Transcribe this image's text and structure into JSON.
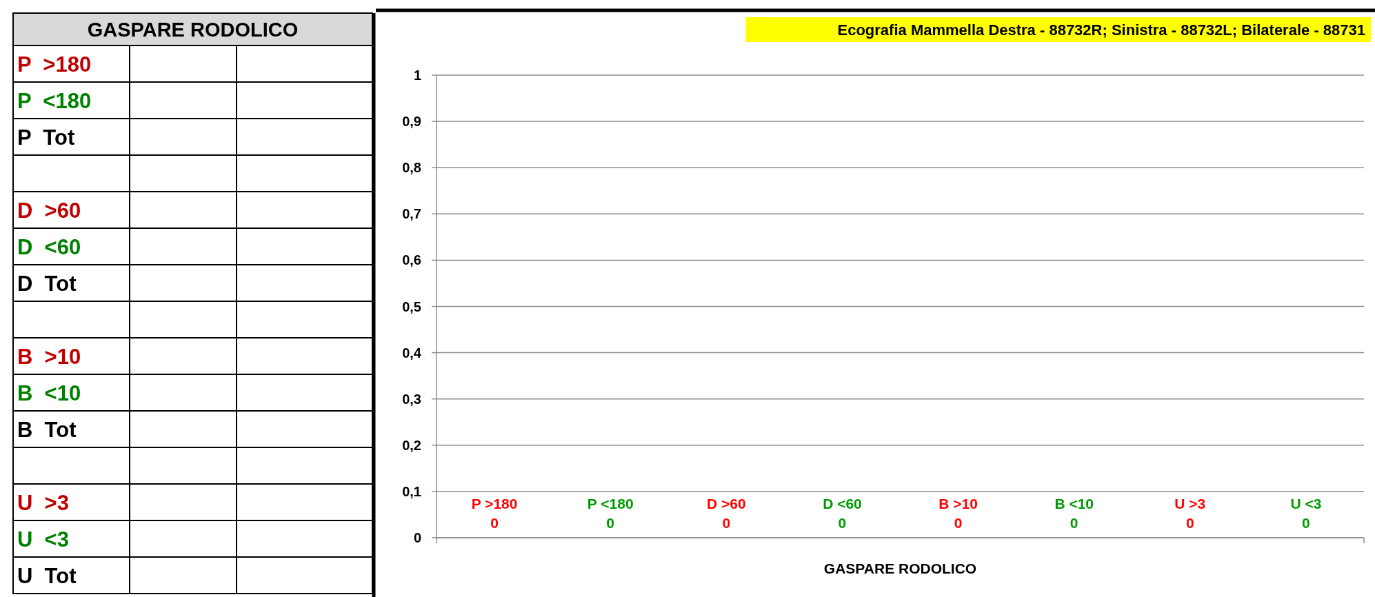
{
  "chart_data": [
    {
      "type": "other",
      "title": "GASPARE RODOLICO",
      "categories": [
        "P  >180",
        "P  <180",
        "P  Tot",
        null,
        "D  >60",
        "D  <60",
        "D  Tot",
        null,
        "B  >10",
        "B  <10",
        "B  Tot",
        null,
        "U  >3",
        "U  <3",
        "U  Tot"
      ],
      "colors": [
        "#c00000",
        "#008000",
        "#000000",
        null,
        "#c00000",
        "#008000",
        "#000000",
        null,
        "#c00000",
        "#008000",
        "#000000",
        null,
        "#c00000",
        "#008000",
        "#000000"
      ]
    },
    {
      "type": "bar",
      "title": "Ecografia Mammella Destra - 88732R; Sinistra - 88732L; Bilaterale - 88731",
      "xlabel": "GASPARE RODOLICO",
      "categories": [
        "P >180",
        "P <180",
        "D >60",
        "D <60",
        "B >10",
        "B <10",
        "U >3",
        "U <3"
      ],
      "values": [
        0,
        0,
        0,
        0,
        0,
        0,
        0,
        0
      ],
      "colors": [
        "#ff0000",
        "#009900",
        "#ff0000",
        "#009900",
        "#ff0000",
        "#009900",
        "#ff0000",
        "#009900"
      ],
      "ylim": [
        0,
        1
      ],
      "yticks": [
        0,
        {
          "value": 0.1,
          "label": "0,1"
        },
        {
          "value": 0.2,
          "label": "0,2"
        },
        {
          "value": 0.3,
          "label": "0,3"
        },
        {
          "value": 0.4,
          "label": "0,4"
        },
        {
          "value": 0.5,
          "label": "0,5"
        },
        {
          "value": 0.6,
          "label": "0,6"
        },
        {
          "value": 0.7,
          "label": "0,7"
        },
        {
          "value": 0.8,
          "label": "0,8"
        },
        {
          "value": 0.9,
          "label": "0,9"
        },
        1
      ],
      "grid": "y",
      "data_labels": true
    }
  ]
}
